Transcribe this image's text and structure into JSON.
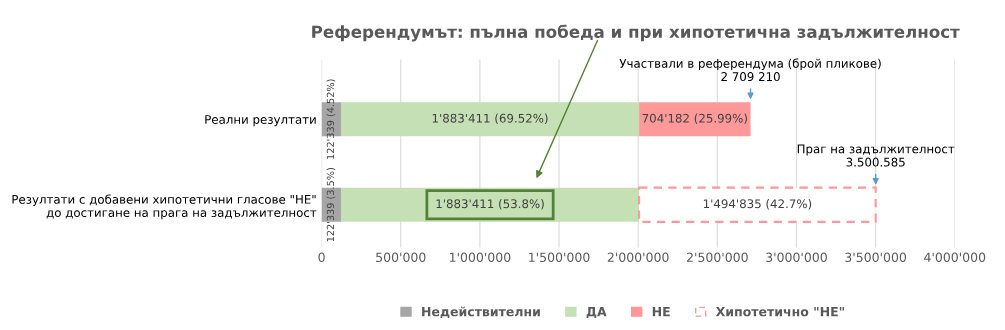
{
  "chart_data": {
    "type": "bar",
    "orientation": "horizontal",
    "stacked": true,
    "title": "Референдумът: пълна победа и при хипотетична задължителност",
    "categories": [
      "Реални резултати",
      "Резултати с добавени хипотетични гласове \"НЕ\"\nдо достигане на прага на задължителност"
    ],
    "series": [
      {
        "name": "Недействителни",
        "color": "#a6a6a6",
        "values": [
          122339,
          122339
        ],
        "value_labels": [
          "122'339 (4.52%)",
          "122'339 (3.5%)"
        ]
      },
      {
        "name": "ДА",
        "color": "#c5e0b4",
        "values": [
          1883411,
          1883411
        ],
        "value_labels": [
          "1'883'411 (69.52%)",
          "1'883'411 (53.8%)"
        ]
      },
      {
        "name": "НЕ",
        "color": "#ff9999",
        "values": [
          704182,
          null
        ],
        "value_labels": [
          "704'182 (25.99%)",
          null
        ]
      },
      {
        "name": "Хипотетично \"НЕ\"",
        "color": "#ff9999",
        "line_style": "dashed",
        "values": [
          null,
          1494835
        ],
        "value_labels": [
          null,
          "1'494'835 (42.7%)"
        ]
      }
    ],
    "xlim": [
      0,
      4000000
    ],
    "xticks": [
      0,
      {
        "value": 500000,
        "label": "500'000"
      },
      {
        "value": 1000000,
        "label": "1'000'000"
      },
      {
        "value": 1500000,
        "label": "1'500'000"
      },
      {
        "value": 2000000,
        "label": "2'000'000"
      },
      {
        "value": 2500000,
        "label": "2'500'000"
      },
      {
        "value": 3000000,
        "label": "3'000'000"
      },
      {
        "value": 3500000,
        "label": "3'500'000"
      },
      {
        "value": 4000000,
        "label": "4'000'000"
      }
    ],
    "grid": "x",
    "legend": "bottom",
    "annotations": [
      "Участвали в референдума (брой пликове)\n2 709 210",
      "Праг на задължителност\n3.500.585"
    ]
  }
}
